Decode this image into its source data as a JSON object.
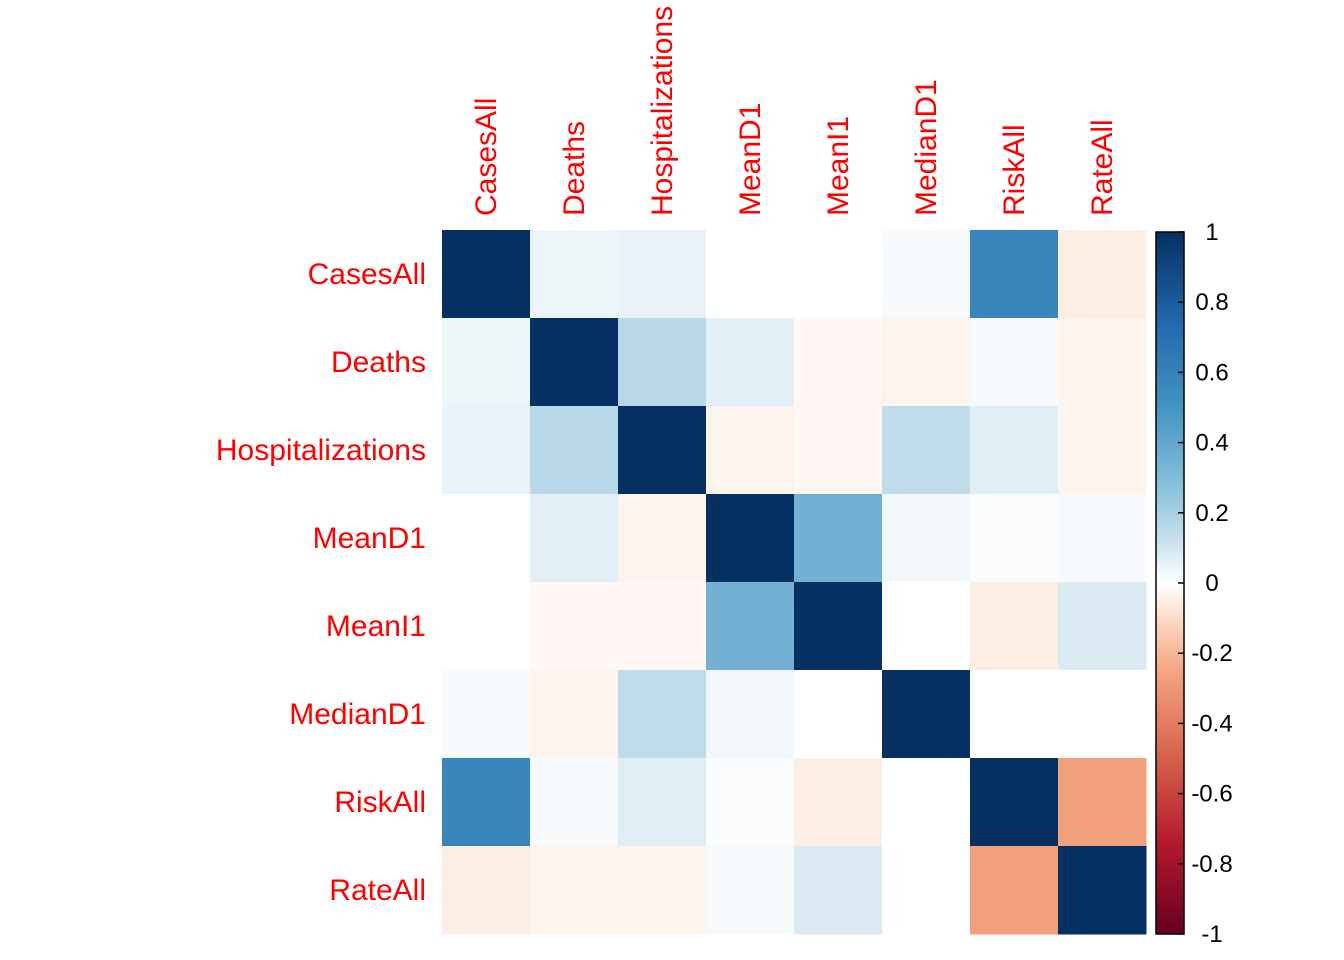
{
  "chart_data": {
    "type": "heatmap",
    "title": "",
    "xlabel": "",
    "ylabel": "",
    "labels": [
      "CasesAll",
      "Deaths",
      "Hospitalizations",
      "MeanD1",
      "MeanI1",
      "MedianD1",
      "RiskAll",
      "RateAll"
    ],
    "matrix": [
      [
        1.0,
        0.04,
        0.05,
        0.0,
        0.0,
        0.02,
        0.58,
        -0.05
      ],
      [
        0.04,
        1.0,
        0.16,
        0.06,
        -0.02,
        -0.03,
        0.02,
        -0.03
      ],
      [
        0.05,
        0.16,
        1.0,
        -0.03,
        -0.02,
        0.14,
        0.07,
        -0.03
      ],
      [
        0.0,
        0.06,
        -0.03,
        1.0,
        0.35,
        0.03,
        0.01,
        0.02
      ],
      [
        0.0,
        -0.02,
        -0.02,
        0.35,
        1.0,
        0.0,
        -0.05,
        0.08
      ],
      [
        0.02,
        -0.03,
        0.14,
        0.03,
        0.0,
        1.0,
        0.0,
        0.0
      ],
      [
        0.58,
        0.02,
        0.07,
        0.01,
        -0.05,
        0.0,
        1.0,
        -0.27
      ],
      [
        -0.05,
        -0.03,
        -0.03,
        0.02,
        0.08,
        0.0,
        -0.27,
        1.0
      ]
    ],
    "colorbar": {
      "min": -1,
      "max": 1,
      "ticks": [
        "1",
        "0.8",
        "0.6",
        "0.4",
        "0.2",
        "0",
        "-0.2",
        "-0.4",
        "-0.6",
        "-0.8",
        "-1"
      ],
      "low_color": "#67001F",
      "mid_color": "#FFFFFF",
      "high_color": "#053061"
    },
    "label_color": "#FF0000"
  }
}
